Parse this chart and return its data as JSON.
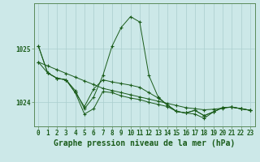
{
  "title": "Graphe pression niveau de la mer (hPa)",
  "background_color": "#cce8e8",
  "plot_bg_color": "#cce8e8",
  "grid_color": "#aacece",
  "line_color": "#1a5c1a",
  "x_min": 0,
  "x_max": 23,
  "yticks": [
    1024,
    1025
  ],
  "ylim": [
    1023.55,
    1025.85
  ],
  "series": [
    {
      "y": [
        1024.75,
        1024.68,
        1024.61,
        1024.54,
        1024.47,
        1024.4,
        1024.33,
        1024.26,
        1024.22,
        1024.18,
        1024.14,
        1024.1,
        1024.06,
        1024.02,
        1023.98,
        1023.94,
        1023.9,
        1023.88,
        1023.86,
        1023.87,
        1023.89,
        1023.91,
        1023.88,
        1023.85
      ]
    },
    {
      "y": [
        1024.75,
        1024.55,
        1024.45,
        1024.42,
        1024.22,
        1023.88,
        1024.1,
        1024.5,
        1025.05,
        1025.4,
        1025.6,
        1025.5,
        1024.5,
        1024.1,
        1023.95,
        1023.83,
        1023.8,
        1023.78,
        1023.7,
        1023.82,
        1023.9,
        1023.91,
        1023.88,
        1023.85
      ]
    },
    {
      "y": [
        1025.05,
        1024.55,
        1024.45,
        1024.42,
        1024.18,
        1023.92,
        1024.25,
        1024.42,
        1024.38,
        1024.35,
        1024.32,
        1024.28,
        1024.18,
        1024.08,
        1023.95,
        1023.83,
        1023.8,
        1023.85,
        1023.75,
        1023.82,
        1023.9,
        1023.91,
        1023.88,
        1023.85
      ]
    },
    {
      "y": [
        1025.05,
        1024.55,
        1024.45,
        1024.42,
        1024.18,
        1023.78,
        1023.88,
        1024.2,
        1024.18,
        1024.12,
        1024.08,
        1024.05,
        1024.0,
        1023.96,
        1023.92,
        1023.83,
        1023.8,
        1023.85,
        1023.75,
        1023.82,
        1023.9,
        1023.91,
        1023.88,
        1023.85
      ]
    }
  ],
  "title_fontsize": 7.0,
  "tick_fontsize": 5.5
}
